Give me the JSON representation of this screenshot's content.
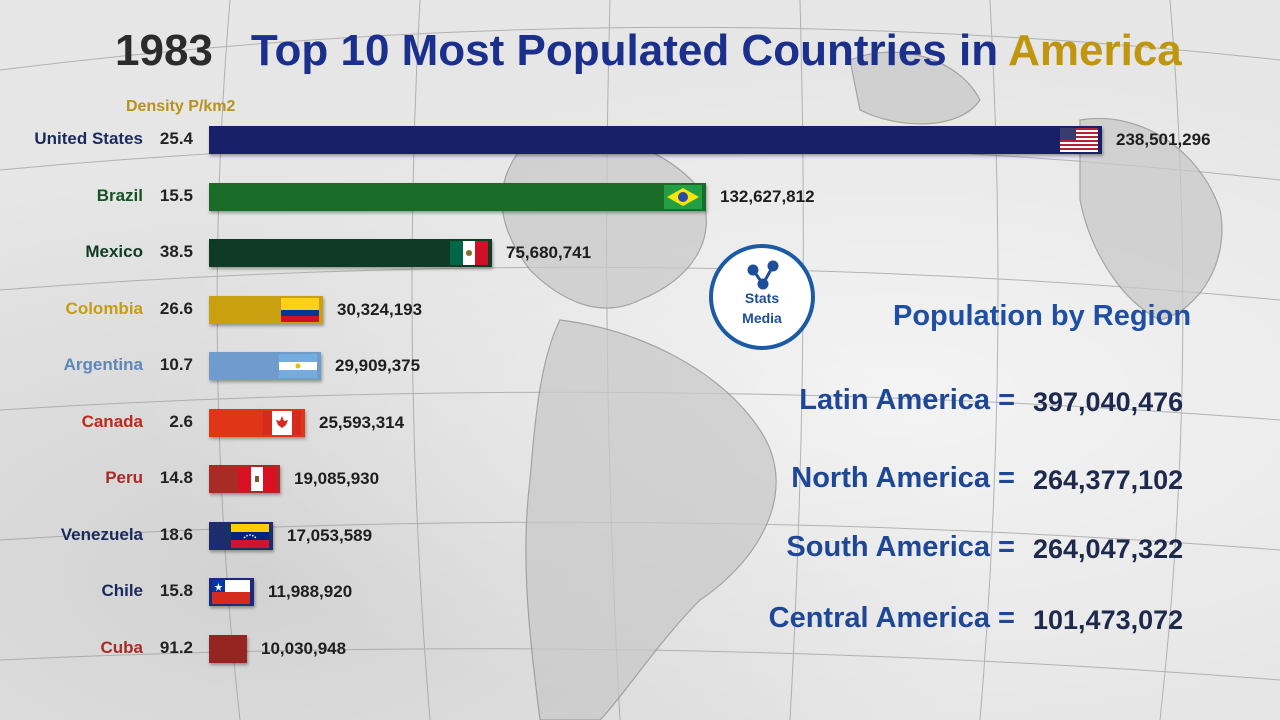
{
  "header": {
    "year": "1983",
    "title": "Top 10 Most Populated Countries in",
    "title_accent": "America"
  },
  "density_header": "Density P/km2",
  "logo": {
    "line1": "Stats",
    "line2": "Media",
    "icon": "molecule-icon"
  },
  "colors": {
    "title": "#1b2f8c",
    "accent": "#c0960f",
    "region": "#1e4796"
  },
  "chart_data": {
    "type": "bar",
    "categories": [
      "United States",
      "Brazil",
      "Mexico",
      "Colombia",
      "Argentina",
      "Canada",
      "Peru",
      "Venezuela",
      "Chile",
      "Cuba"
    ],
    "values": [
      238501296,
      132627812,
      75680741,
      30324193,
      29909375,
      25593314,
      19085930,
      17053589,
      11988920,
      10030948
    ],
    "value_labels": [
      "238,501,296",
      "132,627,812",
      "75,680,741",
      "30,324,193",
      "29,909,375",
      "25,593,314",
      "19,085,930",
      "17,053,589",
      "11,988,920",
      "10,030,948"
    ],
    "density": [
      "25.4",
      "15.5",
      "38.5",
      "26.6",
      "10.7",
      "2.6",
      "14.8",
      "18.6",
      "15.8",
      "91.2"
    ],
    "bar_colors": [
      "#19206a",
      "#1a6b27",
      "#0f3b26",
      "#c9a00f",
      "#6f9ccc",
      "#e03517",
      "#a82b26",
      "#1c2c6c",
      "#1b2a7a",
      "#962522"
    ],
    "label_colors": [
      "#1b2a5e",
      "#155226",
      "#0f3b26",
      "#c59d11",
      "#5d87b8",
      "#c0291a",
      "#a82b26",
      "#1b2a5e",
      "#1b2a5e",
      "#a82b26"
    ],
    "flags": [
      "usa-flag-icon",
      "brazil-flag-icon",
      "mexico-flag-icon",
      "colombia-flag-icon",
      "argentina-flag-icon",
      "canada-flag-icon",
      "peru-flag-icon",
      "venezuela-flag-icon",
      "chile-flag-icon",
      "cuba-flag-icon"
    ]
  },
  "regions": {
    "title": "Population by Region",
    "items": [
      {
        "label": "Latin America =",
        "value": "397,040,476"
      },
      {
        "label": "North America =",
        "value": "264,377,102"
      },
      {
        "label": "South America =",
        "value": "264,047,322"
      },
      {
        "label": "Central America =",
        "value": "101,473,072"
      }
    ]
  }
}
